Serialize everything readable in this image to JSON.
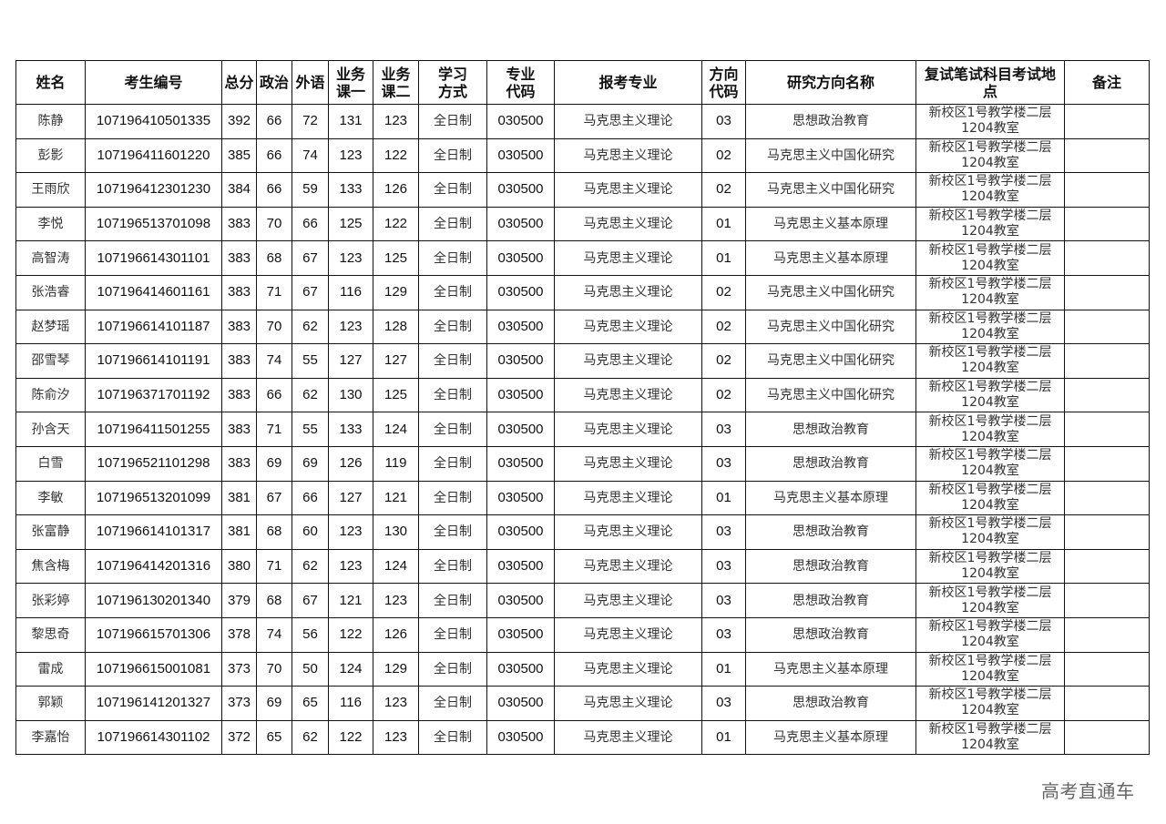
{
  "table": {
    "headers": [
      "姓名",
      "考生编号",
      "总分",
      "政治",
      "外语",
      "业务课一",
      "业务课二",
      "学习方式",
      "专业代码",
      "报考专业",
      "方向代码",
      "研究方向名称",
      "复试笔试科目考试地点",
      "备注"
    ],
    "rows": [
      [
        "陈静",
        "107196410501335",
        "392",
        "66",
        "72",
        "131",
        "123",
        "全日制",
        "030500",
        "马克思主义理论",
        "03",
        "思想政治教育",
        "新校区1号教学楼二层1204教室",
        ""
      ],
      [
        "彭影",
        "107196411601220",
        "385",
        "66",
        "74",
        "123",
        "122",
        "全日制",
        "030500",
        "马克思主义理论",
        "02",
        "马克思主义中国化研究",
        "新校区1号教学楼二层1204教室",
        ""
      ],
      [
        "王雨欣",
        "107196412301230",
        "384",
        "66",
        "59",
        "133",
        "126",
        "全日制",
        "030500",
        "马克思主义理论",
        "02",
        "马克思主义中国化研究",
        "新校区1号教学楼二层1204教室",
        ""
      ],
      [
        "李悦",
        "107196513701098",
        "383",
        "70",
        "66",
        "125",
        "122",
        "全日制",
        "030500",
        "马克思主义理论",
        "01",
        "马克思主义基本原理",
        "新校区1号教学楼二层1204教室",
        ""
      ],
      [
        "高智涛",
        "107196614301101",
        "383",
        "68",
        "67",
        "123",
        "125",
        "全日制",
        "030500",
        "马克思主义理论",
        "01",
        "马克思主义基本原理",
        "新校区1号教学楼二层1204教室",
        ""
      ],
      [
        "张浩睿",
        "107196414601161",
        "383",
        "71",
        "67",
        "116",
        "129",
        "全日制",
        "030500",
        "马克思主义理论",
        "02",
        "马克思主义中国化研究",
        "新校区1号教学楼二层1204教室",
        ""
      ],
      [
        "赵梦瑶",
        "107196614101187",
        "383",
        "70",
        "62",
        "123",
        "128",
        "全日制",
        "030500",
        "马克思主义理论",
        "02",
        "马克思主义中国化研究",
        "新校区1号教学楼二层1204教室",
        ""
      ],
      [
        "邵雪琴",
        "107196614101191",
        "383",
        "74",
        "55",
        "127",
        "127",
        "全日制",
        "030500",
        "马克思主义理论",
        "02",
        "马克思主义中国化研究",
        "新校区1号教学楼二层1204教室",
        ""
      ],
      [
        "陈俞汐",
        "107196371701192",
        "383",
        "66",
        "62",
        "130",
        "125",
        "全日制",
        "030500",
        "马克思主义理论",
        "02",
        "马克思主义中国化研究",
        "新校区1号教学楼二层1204教室",
        ""
      ],
      [
        "孙含天",
        "107196411501255",
        "383",
        "71",
        "55",
        "133",
        "124",
        "全日制",
        "030500",
        "马克思主义理论",
        "03",
        "思想政治教育",
        "新校区1号教学楼二层1204教室",
        ""
      ],
      [
        "白雪",
        "107196521101298",
        "383",
        "69",
        "69",
        "126",
        "119",
        "全日制",
        "030500",
        "马克思主义理论",
        "03",
        "思想政治教育",
        "新校区1号教学楼二层1204教室",
        ""
      ],
      [
        "李敏",
        "107196513201099",
        "381",
        "67",
        "66",
        "127",
        "121",
        "全日制",
        "030500",
        "马克思主义理论",
        "01",
        "马克思主义基本原理",
        "新校区1号教学楼二层1204教室",
        ""
      ],
      [
        "张富静",
        "107196614101317",
        "381",
        "68",
        "60",
        "123",
        "130",
        "全日制",
        "030500",
        "马克思主义理论",
        "03",
        "思想政治教育",
        "新校区1号教学楼二层1204教室",
        ""
      ],
      [
        "焦含梅",
        "107196414201316",
        "380",
        "71",
        "62",
        "123",
        "124",
        "全日制",
        "030500",
        "马克思主义理论",
        "03",
        "思想政治教育",
        "新校区1号教学楼二层1204教室",
        ""
      ],
      [
        "张彩婷",
        "107196130201340",
        "379",
        "68",
        "67",
        "121",
        "123",
        "全日制",
        "030500",
        "马克思主义理论",
        "03",
        "思想政治教育",
        "新校区1号教学楼二层1204教室",
        ""
      ],
      [
        "黎思奇",
        "107196615701306",
        "378",
        "74",
        "56",
        "122",
        "126",
        "全日制",
        "030500",
        "马克思主义理论",
        "03",
        "思想政治教育",
        "新校区1号教学楼二层1204教室",
        ""
      ],
      [
        "雷成",
        "107196615001081",
        "373",
        "70",
        "50",
        "124",
        "129",
        "全日制",
        "030500",
        "马克思主义理论",
        "01",
        "马克思主义基本原理",
        "新校区1号教学楼二层1204教室",
        ""
      ],
      [
        "郭颖",
        "107196141201327",
        "373",
        "69",
        "65",
        "116",
        "123",
        "全日制",
        "030500",
        "马克思主义理论",
        "03",
        "思想政治教育",
        "新校区1号教学楼二层1204教室",
        ""
      ],
      [
        "李嘉怡",
        "107196614301102",
        "372",
        "65",
        "62",
        "122",
        "123",
        "全日制",
        "030500",
        "马克思主义理论",
        "01",
        "马克思主义基本原理",
        "新校区1号教学楼二层1204教室",
        ""
      ]
    ]
  },
  "watermark": "高考直通车"
}
